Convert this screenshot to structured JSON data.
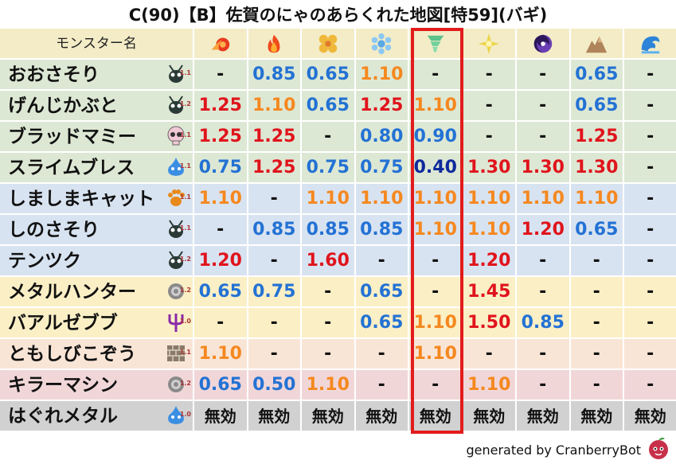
{
  "title": "C(90)【B】佐賀のにゃのあらくれた地図[特59](バギ)",
  "header_label": "モンスター名",
  "elements": [
    {
      "name": "fire-ball",
      "icon": "fireball-icon"
    },
    {
      "name": "flame",
      "icon": "flame-icon"
    },
    {
      "name": "explosion",
      "icon": "explosion-icon"
    },
    {
      "name": "ice",
      "icon": "ice-crystal-icon"
    },
    {
      "name": "wind",
      "icon": "tornado-icon"
    },
    {
      "name": "light",
      "icon": "light-star-icon"
    },
    {
      "name": "dark",
      "icon": "dark-spiral-icon"
    },
    {
      "name": "earth",
      "icon": "rock-icon"
    },
    {
      "name": "water",
      "icon": "wave-icon"
    }
  ],
  "highlighted_column": 4,
  "rows": [
    {
      "name": "おおさそり",
      "icon": "bug-icon",
      "level": "1.1",
      "group": "green",
      "values": [
        "-",
        "0.85",
        "0.65",
        "1.10",
        "-",
        "-",
        "-",
        "0.65",
        "-"
      ]
    },
    {
      "name": "げんじかぶと",
      "icon": "bug-icon",
      "level": "1.2",
      "group": "green",
      "values": [
        "1.25",
        "1.10",
        "0.65",
        "1.25",
        "1.10",
        "-",
        "-",
        "0.65",
        "-"
      ]
    },
    {
      "name": "ブラッドマミー",
      "icon": "skull-icon",
      "level": "1.1",
      "group": "green",
      "values": [
        "1.25",
        "1.25",
        "-",
        "0.80",
        "0.90",
        "-",
        "-",
        "1.25",
        "-"
      ]
    },
    {
      "name": "スライムブレス",
      "icon": "slime-icon",
      "level": "1.1",
      "group": "green",
      "values": [
        "0.75",
        "1.25",
        "0.75",
        "0.75",
        "0.40",
        "1.30",
        "1.30",
        "1.30",
        "-"
      ]
    },
    {
      "name": "しましまキャット",
      "icon": "paw-icon",
      "level": "1.1",
      "group": "blue",
      "values": [
        "1.10",
        "-",
        "1.10",
        "1.10",
        "1.10",
        "1.10",
        "1.10",
        "1.10",
        "-"
      ]
    },
    {
      "name": "しのさそり",
      "icon": "bug-icon",
      "level": "1.1",
      "group": "blue",
      "values": [
        "-",
        "0.85",
        "0.85",
        "0.85",
        "1.10",
        "1.10",
        "1.20",
        "0.65",
        "-"
      ]
    },
    {
      "name": "テンツク",
      "icon": "bug-icon",
      "level": "1.2",
      "group": "blue",
      "values": [
        "1.20",
        "-",
        "1.60",
        "-",
        "-",
        "1.20",
        "-",
        "-",
        "-"
      ]
    },
    {
      "name": "メタルハンター",
      "icon": "gear-icon",
      "level": "1.2",
      "group": "yellow",
      "values": [
        "0.65",
        "0.75",
        "-",
        "0.65",
        "-",
        "1.45",
        "-",
        "-",
        "-"
      ]
    },
    {
      "name": "バアルゼブブ",
      "icon": "trident-icon",
      "level": "1.0",
      "group": "yellow",
      "values": [
        "-",
        "-",
        "-",
        "0.65",
        "1.10",
        "1.50",
        "0.85",
        "-",
        "-"
      ]
    },
    {
      "name": "ともしびこぞう",
      "icon": "brick-icon",
      "level": "1.1",
      "group": "peach",
      "values": [
        "1.10",
        "-",
        "-",
        "-",
        "1.10",
        "-",
        "-",
        "-",
        "-"
      ]
    },
    {
      "name": "キラーマシン",
      "icon": "gear-icon",
      "level": "1.2",
      "group": "pink",
      "values": [
        "0.65",
        "0.50",
        "1.10",
        "-",
        "-",
        "1.10",
        "-",
        "-",
        "-"
      ]
    },
    {
      "name": "はぐれメタル",
      "icon": "slime-icon",
      "level": "1.0",
      "group": "gray",
      "values": [
        "無効",
        "無効",
        "無効",
        "無効",
        "無効",
        "無効",
        "無効",
        "無効",
        "無効"
      ]
    }
  ],
  "colors": {
    "header": "#f3ecc7",
    "green": "#dde8d4",
    "blue": "#d8e3f1",
    "yellow": "#fbefc6",
    "peach": "#f9e5d6",
    "pink": "#f1d6d8",
    "gray": "#d1d1d1",
    "strong_up": "#e0141c",
    "up": "#f5881f",
    "down": "#2372d4",
    "strong_down": "#0f2a9c",
    "neutral": "#111111",
    "highlight": "#e21c1c"
  },
  "footer": "generated by CranberryBot"
}
